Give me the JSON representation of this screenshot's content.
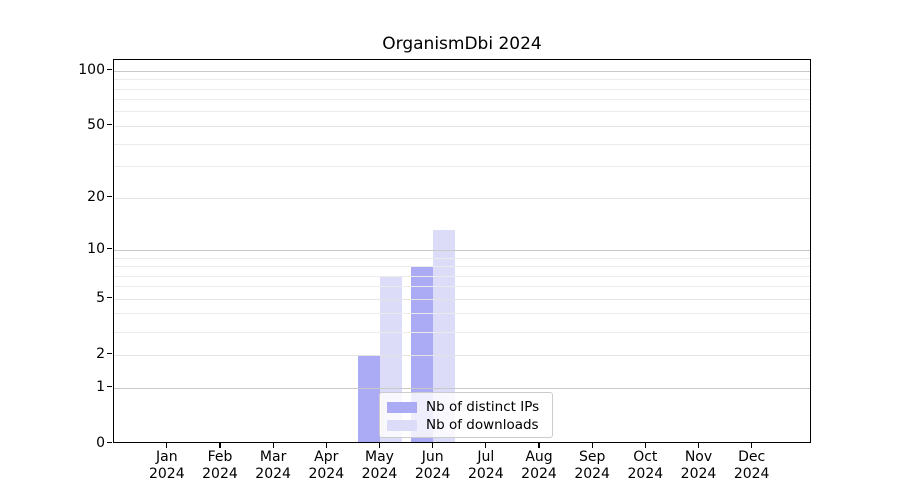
{
  "title": "OrganismDbi 2024",
  "chart_data": {
    "type": "bar",
    "title": "OrganismDbi 2024",
    "xlabel": "",
    "ylabel": "",
    "scale": "log10(1+x)",
    "ylim": [
      0,
      114
    ],
    "year": "2024",
    "categories": [
      "Jan",
      "Feb",
      "Mar",
      "Apr",
      "May",
      "Jun",
      "Jul",
      "Aug",
      "Sep",
      "Oct",
      "Nov",
      "Dec"
    ],
    "series": [
      {
        "name": "Nb of distinct IPs",
        "color": "#abaaf5",
        "values": [
          0,
          0,
          0,
          0,
          2,
          8,
          0,
          0,
          0,
          0,
          0,
          0
        ]
      },
      {
        "name": "Nb of downloads",
        "color": "#dddcf8",
        "values": [
          0,
          0,
          0,
          0,
          7,
          13,
          0,
          0,
          0,
          0,
          0,
          0
        ]
      }
    ],
    "ytick_labels": [
      0,
      1,
      2,
      5,
      10,
      20,
      50,
      100
    ],
    "major_gridlines": [
      1,
      10,
      100
    ],
    "labeled_gridlines": [
      2,
      5,
      20,
      50
    ],
    "minor_gridlines": [
      3,
      4,
      6,
      7,
      8,
      9,
      30,
      40,
      60,
      70,
      80,
      90
    ],
    "legend_position": "lower center",
    "grid": true,
    "colors": {
      "major_grid": "#c9c9c9",
      "labeled_grid": "#e3e3e3",
      "minor_grid": "#ebebeb",
      "axis": "#000000",
      "legend_border": "#cccccc"
    }
  }
}
